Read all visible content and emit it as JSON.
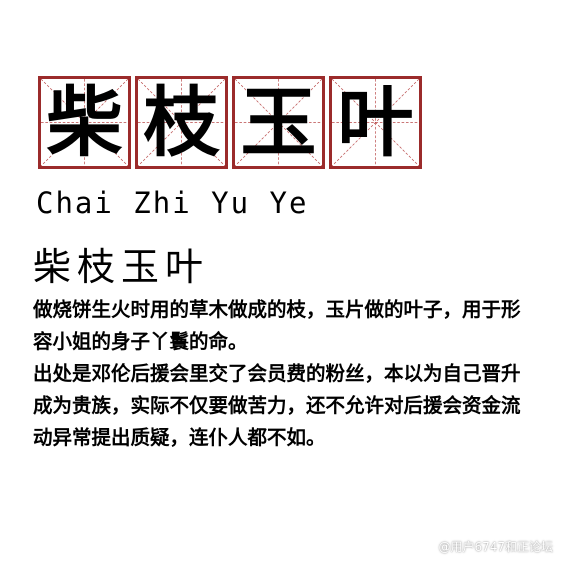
{
  "title_chars": [
    "柴",
    "枝",
    "玉",
    "叶"
  ],
  "pinyin": "Chai Zhi Yu Ye",
  "subtitle": "柴枝玉叶",
  "paragraphs": [
    "做烧饼生火时用的草木做成的枝，玉片做的叶子，用于形容小姐的身子丫鬟的命。",
    "出处是邓伦后援会里交了会员费的粉丝，本以为自己晋升成为贵族，实际不仅要做苦力，还不允许对后援会资金流动异常提出质疑，连仆人都不如。"
  ],
  "watermark": "@用户6747和正论坛",
  "colors": {
    "grid_border": "#9b2b2b",
    "guide_lines": "#b94a4a",
    "text": "#000000"
  },
  "icons": {
    "watermark": "weibo-icon"
  }
}
